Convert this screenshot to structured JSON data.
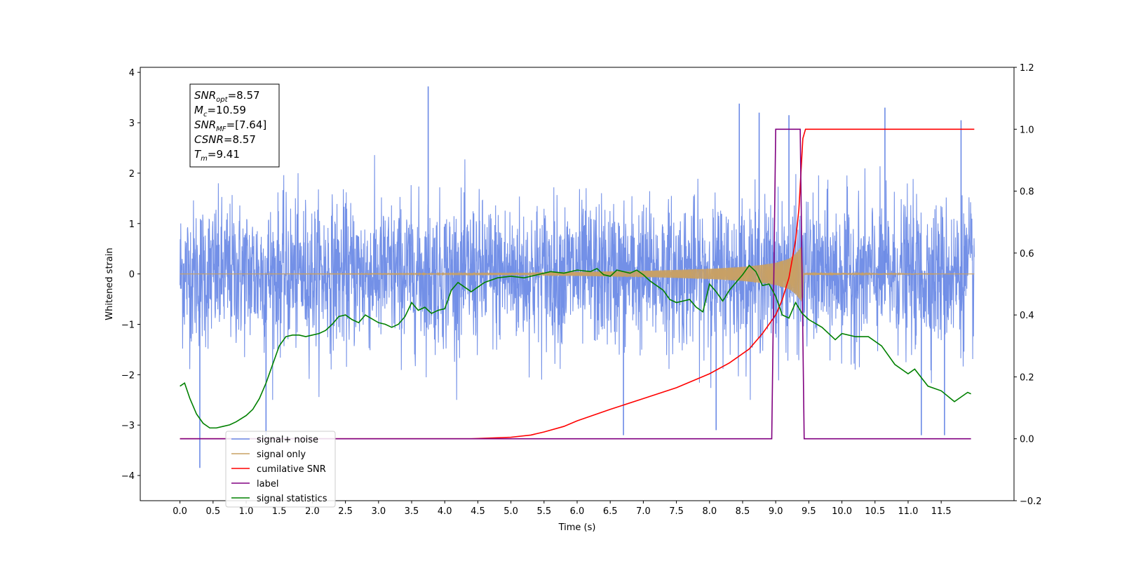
{
  "chart_data": {
    "type": "line",
    "xlabel": "Time (s)",
    "ylabel": "Whitened strain",
    "ylabel_right": "",
    "xlim": [
      -0.6,
      12.6
    ],
    "ylim_left": [
      -4.5,
      4.1
    ],
    "ylim_right": [
      -0.2,
      1.2
    ],
    "x_ticks": [
      0.0,
      0.5,
      1.0,
      1.5,
      2.0,
      2.5,
      3.0,
      3.5,
      4.0,
      4.5,
      5.0,
      5.5,
      6.0,
      6.5,
      7.0,
      7.5,
      8.0,
      8.5,
      9.0,
      9.5,
      10.0,
      10.5,
      11.0,
      11.5
    ],
    "x_tick_labels": [
      "0.0",
      "0.5",
      "1.0",
      "1.5",
      "2.0",
      "2.5",
      "3.0",
      "3.5",
      "4.0",
      "4.5",
      "5.0",
      "5.5",
      "6.0",
      "6.5",
      "7.0",
      "7.5",
      "8.0",
      "8.5",
      "9.0",
      "9.5",
      "10.0",
      "10.5",
      "11.0",
      "11.5"
    ],
    "y_ticks_left": [
      4,
      3,
      2,
      1,
      0,
      -1,
      -2,
      -3,
      -4
    ],
    "y_tick_labels_left": [
      "4",
      "3",
      "2",
      "1",
      "0",
      "−1",
      "−2",
      "−3",
      "−4"
    ],
    "y_ticks_right": [
      1.2,
      1.0,
      0.8,
      0.6,
      0.4,
      0.2,
      0.0,
      -0.2
    ],
    "y_tick_labels_right": [
      "1.2",
      "1.0",
      "0.8",
      "0.6",
      "0.4",
      "0.2",
      "0.0",
      "−0.2"
    ],
    "grid": false,
    "legend_position": "lower-left",
    "annotation": [
      {
        "base": "SNR",
        "sub": "opt",
        "rest": "=8.57"
      },
      {
        "base": "M",
        "sub": "c",
        "rest": "=10.59"
      },
      {
        "base": "SNR",
        "sub": "MF",
        "rest": "=[7.64]"
      },
      {
        "base": "CSNR",
        "sub": "",
        "rest": "=8.57"
      },
      {
        "base": "T",
        "sub": "m",
        "rest": "=9.41"
      }
    ],
    "series": [
      {
        "name": "signal+ noise",
        "axis": "left",
        "color": "#6b8ae6",
        "note_style": "dense noise",
        "x_range": [
          0.0,
          12.0
        ],
        "band": [
          -1.3,
          1.3
        ],
        "spikes": [
          {
            "x": 0.3,
            "y": -3.85
          },
          {
            "x": 1.3,
            "y": -3.2
          },
          {
            "x": 3.75,
            "y": 3.72
          },
          {
            "x": 6.7,
            "y": -3.2
          },
          {
            "x": 8.1,
            "y": -3.1
          },
          {
            "x": 8.45,
            "y": 3.38
          },
          {
            "x": 8.75,
            "y": 3.2
          },
          {
            "x": 9.2,
            "y": 3.15
          },
          {
            "x": 10.65,
            "y": 3.3
          },
          {
            "x": 11.2,
            "y": -3.2
          },
          {
            "x": 11.55,
            "y": -3.2
          },
          {
            "x": 11.8,
            "y": 3.05
          }
        ]
      },
      {
        "name": "signal only",
        "axis": "left",
        "color": "#c8a064",
        "note_style": "chirp envelope",
        "x": [
          0.0,
          4.0,
          5.0,
          6.0,
          7.0,
          7.5,
          8.0,
          8.5,
          8.8,
          9.0,
          9.2,
          9.3,
          9.41,
          9.42,
          12.0
        ],
        "amplitude": [
          0.0,
          0.01,
          0.02,
          0.04,
          0.06,
          0.08,
          0.1,
          0.14,
          0.18,
          0.22,
          0.3,
          0.4,
          0.58,
          0.02,
          0.0
        ]
      },
      {
        "name": "cumilative SNR",
        "axis": "right",
        "color": "#ff0000",
        "x": [
          0.0,
          4.4,
          5.0,
          5.3,
          5.5,
          5.8,
          6.0,
          6.5,
          7.0,
          7.5,
          8.0,
          8.3,
          8.6,
          8.8,
          9.0,
          9.1,
          9.2,
          9.3,
          9.35,
          9.41,
          9.45,
          12.0
        ],
        "y": [
          0.0,
          0.0,
          0.005,
          0.012,
          0.022,
          0.04,
          0.058,
          0.095,
          0.13,
          0.165,
          0.21,
          0.245,
          0.29,
          0.34,
          0.4,
          0.45,
          0.52,
          0.64,
          0.74,
          0.97,
          1.0,
          1.0
        ]
      },
      {
        "name": "label",
        "axis": "right",
        "color": "#800080",
        "x": [
          0.0,
          8.94,
          9.0,
          9.37,
          9.43,
          11.95
        ],
        "y": [
          0.0,
          0.0,
          1.0,
          1.0,
          0.0,
          0.0
        ]
      },
      {
        "name": "signal statistics",
        "axis": "right",
        "color": "#008000",
        "x": [
          0.0,
          0.07,
          0.15,
          0.25,
          0.35,
          0.45,
          0.55,
          0.65,
          0.75,
          0.85,
          1.0,
          1.1,
          1.2,
          1.3,
          1.4,
          1.5,
          1.6,
          1.7,
          1.8,
          1.9,
          2.0,
          2.1,
          2.2,
          2.3,
          2.4,
          2.5,
          2.6,
          2.7,
          2.8,
          3.0,
          3.1,
          3.2,
          3.3,
          3.4,
          3.5,
          3.6,
          3.7,
          3.8,
          3.9,
          4.0,
          4.1,
          4.2,
          4.3,
          4.4,
          4.5,
          4.6,
          4.8,
          5.0,
          5.2,
          5.4,
          5.6,
          5.8,
          6.0,
          6.2,
          6.3,
          6.4,
          6.5,
          6.6,
          6.8,
          6.9,
          7.0,
          7.1,
          7.2,
          7.3,
          7.4,
          7.5,
          7.6,
          7.7,
          7.8,
          7.9,
          8.0,
          8.1,
          8.2,
          8.3,
          8.4,
          8.5,
          8.6,
          8.7,
          8.8,
          8.9,
          9.0,
          9.1,
          9.2,
          9.3,
          9.4,
          9.5,
          9.7,
          9.9,
          10.0,
          10.2,
          10.4,
          10.6,
          10.8,
          11.0,
          11.1,
          11.3,
          11.5,
          11.7,
          11.9,
          11.95
        ],
        "y": [
          0.17,
          0.18,
          0.13,
          0.08,
          0.05,
          0.035,
          0.035,
          0.04,
          0.045,
          0.055,
          0.075,
          0.095,
          0.13,
          0.18,
          0.24,
          0.3,
          0.33,
          0.335,
          0.335,
          0.33,
          0.335,
          0.34,
          0.35,
          0.37,
          0.395,
          0.4,
          0.385,
          0.375,
          0.4,
          0.375,
          0.37,
          0.36,
          0.37,
          0.395,
          0.44,
          0.415,
          0.425,
          0.405,
          0.415,
          0.42,
          0.48,
          0.505,
          0.49,
          0.475,
          0.49,
          0.505,
          0.52,
          0.525,
          0.52,
          0.53,
          0.54,
          0.535,
          0.545,
          0.54,
          0.55,
          0.53,
          0.525,
          0.545,
          0.535,
          0.545,
          0.53,
          0.51,
          0.495,
          0.48,
          0.45,
          0.44,
          0.445,
          0.45,
          0.425,
          0.41,
          0.5,
          0.475,
          0.445,
          0.48,
          0.505,
          0.53,
          0.56,
          0.54,
          0.495,
          0.5,
          0.46,
          0.4,
          0.39,
          0.44,
          0.405,
          0.385,
          0.36,
          0.32,
          0.34,
          0.33,
          0.33,
          0.3,
          0.24,
          0.21,
          0.225,
          0.17,
          0.155,
          0.12,
          0.15,
          0.145
        ]
      }
    ]
  }
}
